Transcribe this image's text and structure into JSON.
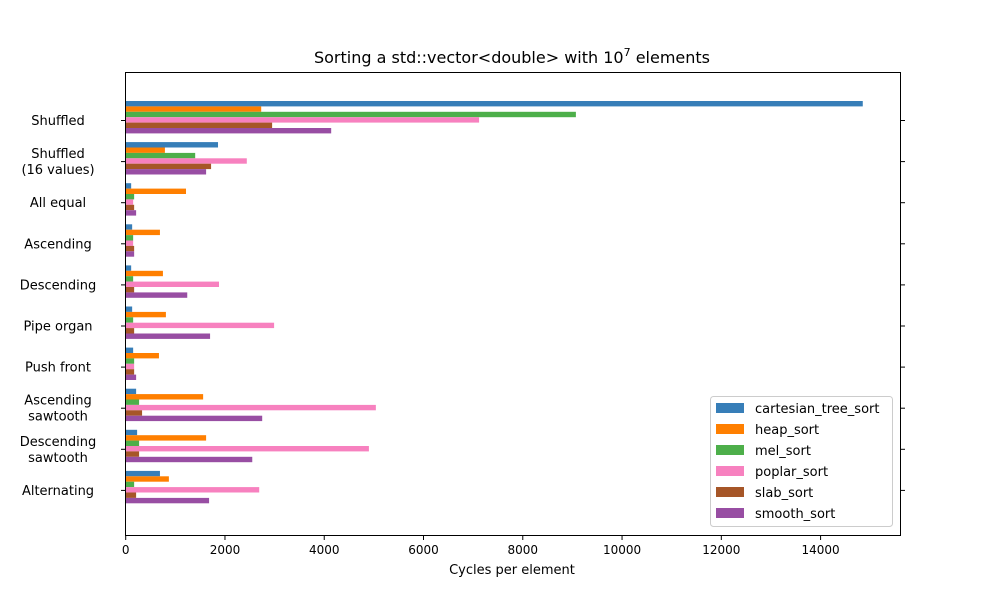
{
  "chart_data": {
    "type": "bar",
    "orientation": "horizontal",
    "title": "Sorting a std::vector<double> with 10",
    "title_superscript": "7",
    "title_suffix": " elements",
    "xlabel": "Cycles per element",
    "ylabel": "",
    "xlim": [
      0,
      15600
    ],
    "xticks": [
      0,
      2000,
      4000,
      6000,
      8000,
      10000,
      12000,
      14000
    ],
    "categories": [
      "Shuffled",
      "Shuffled\n(16 values)",
      "All equal",
      "Ascending",
      "Descending",
      "Pipe organ",
      "Push front",
      "Ascending\nsawtooth",
      "Descending\nsawtooth",
      "Alternating"
    ],
    "legend_position": "lower-right",
    "grid": false,
    "series": [
      {
        "name": "cartesian_tree_sort",
        "color": "#377eb8",
        "values": [
          14850,
          1860,
          110,
          130,
          110,
          130,
          150,
          210,
          230,
          690
        ]
      },
      {
        "name": "heap_sort",
        "color": "#ff7f00",
        "values": [
          2730,
          790,
          1215,
          690,
          750,
          810,
          670,
          1560,
          1620,
          870
        ]
      },
      {
        "name": "mel_sort",
        "color": "#4daf4a",
        "values": [
          9070,
          1400,
          170,
          150,
          150,
          150,
          170,
          270,
          270,
          170
        ]
      },
      {
        "name": "poplar_sort",
        "color": "#f781bf",
        "values": [
          7120,
          2440,
          150,
          150,
          1880,
          2990,
          170,
          5040,
          4900,
          2690
        ]
      },
      {
        "name": "slab_sort",
        "color": "#a65628",
        "values": [
          2950,
          1720,
          170,
          170,
          170,
          170,
          170,
          330,
          270,
          210
        ]
      },
      {
        "name": "smooth_sort",
        "color": "#984ea3",
        "values": [
          4140,
          1620,
          210,
          170,
          1240,
          1700,
          210,
          2750,
          2550,
          1680
        ]
      }
    ]
  }
}
